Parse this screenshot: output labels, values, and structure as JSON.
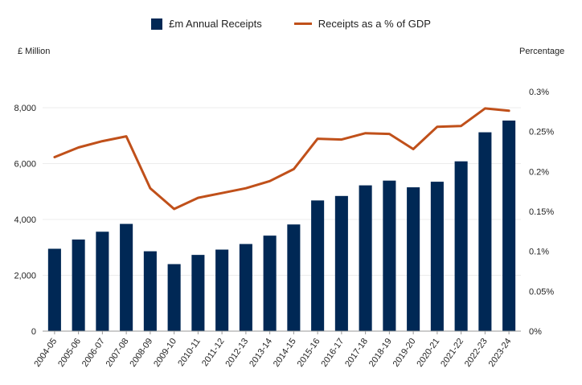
{
  "chart_data": {
    "type": "bar",
    "title": "",
    "ylabel_left": "£ Million",
    "ylabel_right": "Percentage",
    "categories": [
      "2004-05",
      "2005-06",
      "2006-07",
      "2007-08",
      "2008-09",
      "2009-10",
      "2010-11",
      "2011-12",
      "2012-13",
      "2013-14",
      "2014-15",
      "2015-16",
      "2016-17",
      "2017-18",
      "2018-19",
      "2019-20",
      "2020-21",
      "2021-22",
      "2022-23",
      "2023-24"
    ],
    "series": [
      {
        "name": "£m Annual Receipts",
        "type": "bar",
        "axis": "left",
        "color": "#002855",
        "values": [
          2950,
          3280,
          3560,
          3840,
          2860,
          2400,
          2730,
          2920,
          3120,
          3420,
          3820,
          4680,
          4840,
          5220,
          5390,
          5150,
          5350,
          6080,
          7120,
          7540
        ]
      },
      {
        "name": "Receipts as a % of GDP",
        "type": "line",
        "axis": "right",
        "color": "#c0501a",
        "values": [
          0.218,
          0.23,
          0.238,
          0.244,
          0.179,
          0.153,
          0.167,
          0.173,
          0.179,
          0.188,
          0.203,
          0.241,
          0.24,
          0.248,
          0.247,
          0.228,
          0.256,
          0.257,
          0.279,
          0.276
        ]
      }
    ],
    "left_axis": {
      "ylim": [
        0,
        8000
      ],
      "ticks": [
        "0",
        "2,000",
        "4,000",
        "6,000",
        "8,000"
      ],
      "tick_values": [
        0,
        2000,
        4000,
        6000,
        8000
      ]
    },
    "right_axis": {
      "ylim": [
        0,
        0.3
      ],
      "ticks": [
        "0%",
        "0.05%",
        "0.1%",
        "0.15%",
        "0.2%",
        "0.25%",
        "0.3%"
      ],
      "tick_values": [
        0,
        0.05,
        0.1,
        0.15,
        0.2,
        0.25,
        0.3
      ]
    },
    "grid": true,
    "legend_position": "top-center"
  }
}
